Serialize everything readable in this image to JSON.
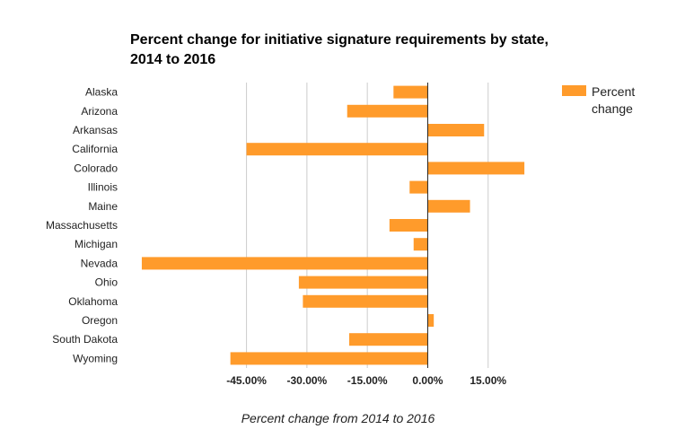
{
  "chart_data": {
    "type": "bar",
    "orientation": "horizontal",
    "title": "Percent change for initiative signature requirements by state, 2014 to 2016",
    "title_lines": [
      "Percent change for initiative signature requirements by state,",
      "2014 to 2016"
    ],
    "xlabel": "Percent change from 2014 to 2016",
    "ylabel": "",
    "categories": [
      "Alaska",
      "Arizona",
      "Arkansas",
      "California",
      "Colorado",
      "Illinois",
      "Maine",
      "Massachusetts",
      "Michigan",
      "Nevada",
      "Ohio",
      "Oklahoma",
      "Oregon",
      "South Dakota",
      "Wyoming"
    ],
    "series": [
      {
        "name": "Percent change",
        "color": "#ff9b2b",
        "values": [
          -8.5,
          -20.0,
          14.0,
          -45.0,
          24.0,
          -4.5,
          10.5,
          -9.5,
          -3.5,
          -71.0,
          -32.0,
          -31.0,
          1.5,
          -19.5,
          -49.0
        ]
      }
    ],
    "xlim": [
      -75,
      32
    ],
    "ticks": [
      -45,
      -30,
      -15,
      0,
      15
    ],
    "tick_labels": [
      "-45.00%",
      "-30.00%",
      "-15.00%",
      "0.00%",
      "15.00%"
    ],
    "grid": "vertical",
    "legend_position": "right",
    "legend_label": "Percent change"
  }
}
